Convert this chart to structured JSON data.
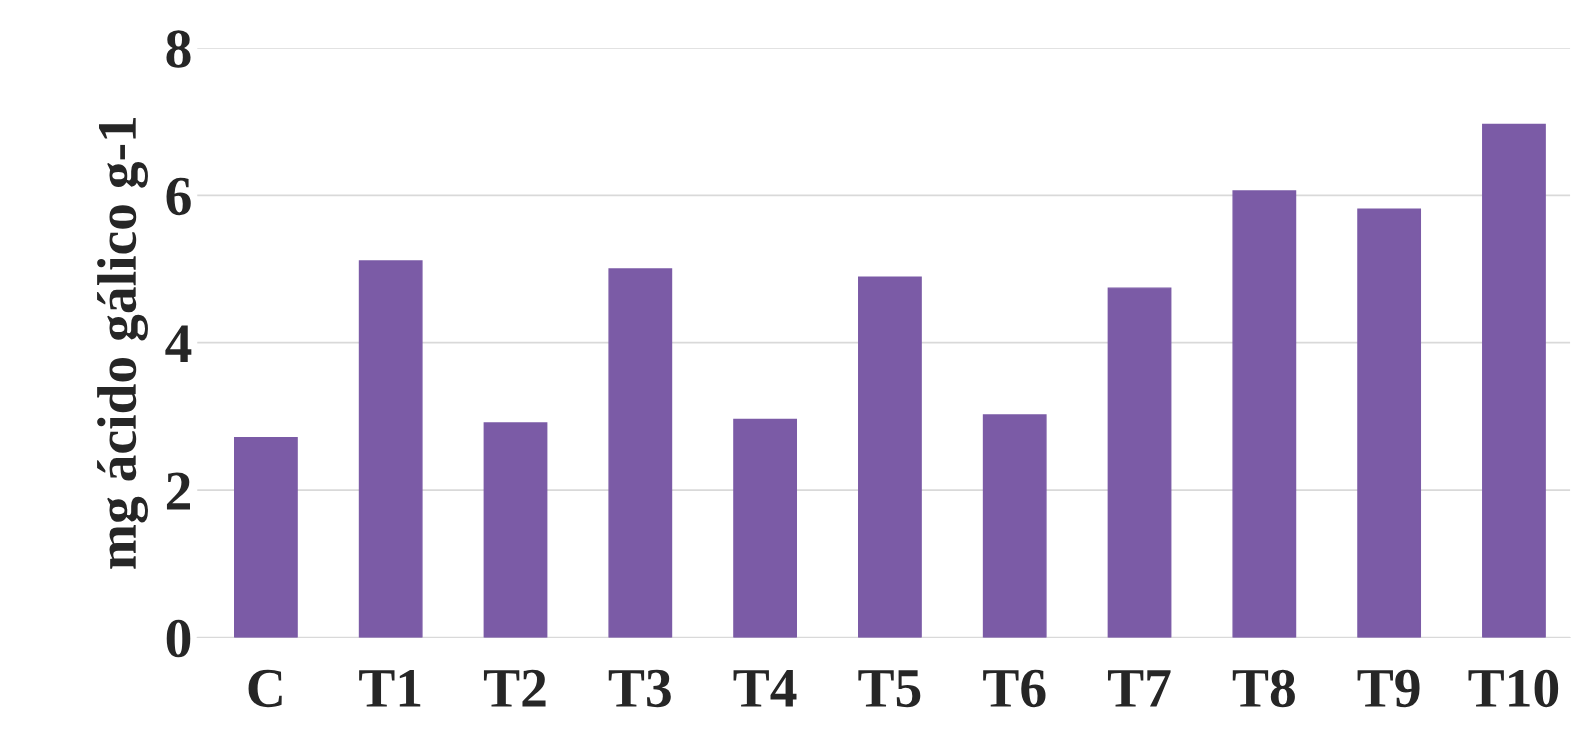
{
  "chart_data": {
    "type": "bar",
    "ylabel": "mg ácido gálico g-1",
    "categories": [
      "C",
      "T1",
      "T2",
      "T3",
      "T4",
      "T5",
      "T6",
      "T7",
      "T8",
      "T9",
      "T10"
    ],
    "values": [
      2.71,
      5.11,
      2.91,
      5.0,
      2.96,
      4.89,
      3.02,
      4.74,
      6.06,
      5.81,
      6.96
    ],
    "color": "#7b5ba6",
    "ylim": [
      0,
      8
    ],
    "yticks": [
      0,
      2,
      4,
      6,
      8
    ],
    "grid": "y"
  }
}
